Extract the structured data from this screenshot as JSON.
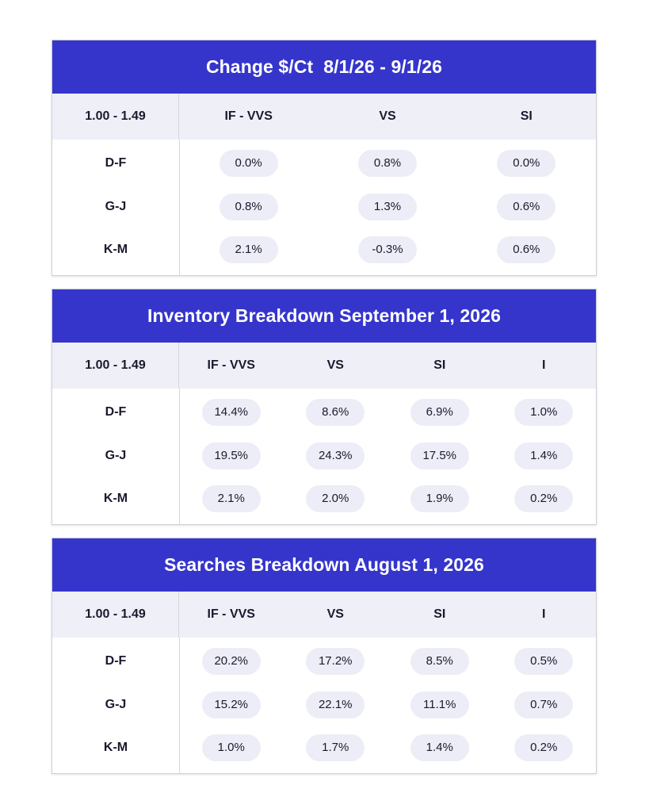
{
  "tables": [
    {
      "title": "Change $/Ct  8/1/26 - 9/1/26",
      "corner_label": "1.00 - 1.49",
      "columns": [
        "IF - VVS",
        "VS",
        "SI"
      ],
      "rows": [
        {
          "label": "D-F",
          "values": [
            "0.0%",
            "0.8%",
            "0.0%"
          ]
        },
        {
          "label": "G-J",
          "values": [
            "0.8%",
            "1.3%",
            "0.6%"
          ]
        },
        {
          "label": "K-M",
          "values": [
            "2.1%",
            "-0.3%",
            "0.6%"
          ]
        }
      ]
    },
    {
      "title": "Inventory Breakdown September 1, 2026",
      "corner_label": "1.00 - 1.49",
      "columns": [
        "IF - VVS",
        "VS",
        "SI",
        "I"
      ],
      "rows": [
        {
          "label": "D-F",
          "values": [
            "14.4%",
            "8.6%",
            "6.9%",
            "1.0%"
          ]
        },
        {
          "label": "G-J",
          "values": [
            "19.5%",
            "24.3%",
            "17.5%",
            "1.4%"
          ]
        },
        {
          "label": "K-M",
          "values": [
            "2.1%",
            "2.0%",
            "1.9%",
            "0.2%"
          ]
        }
      ]
    },
    {
      "title": "Searches Breakdown August 1, 2026",
      "corner_label": "1.00 - 1.49",
      "columns": [
        "IF - VVS",
        "VS",
        "SI",
        "I"
      ],
      "rows": [
        {
          "label": "D-F",
          "values": [
            "20.2%",
            "17.2%",
            "8.5%",
            "0.5%"
          ]
        },
        {
          "label": "G-J",
          "values": [
            "15.2%",
            "22.1%",
            "11.1%",
            "0.7%"
          ]
        },
        {
          "label": "K-M",
          "values": [
            "1.0%",
            "1.7%",
            "1.4%",
            "0.2%"
          ]
        }
      ]
    }
  ],
  "colors": {
    "title_bar": "#3535cc",
    "header_bg": "#efeff8",
    "pill_bg": "#ededf7",
    "text": "#1a1a2e"
  }
}
